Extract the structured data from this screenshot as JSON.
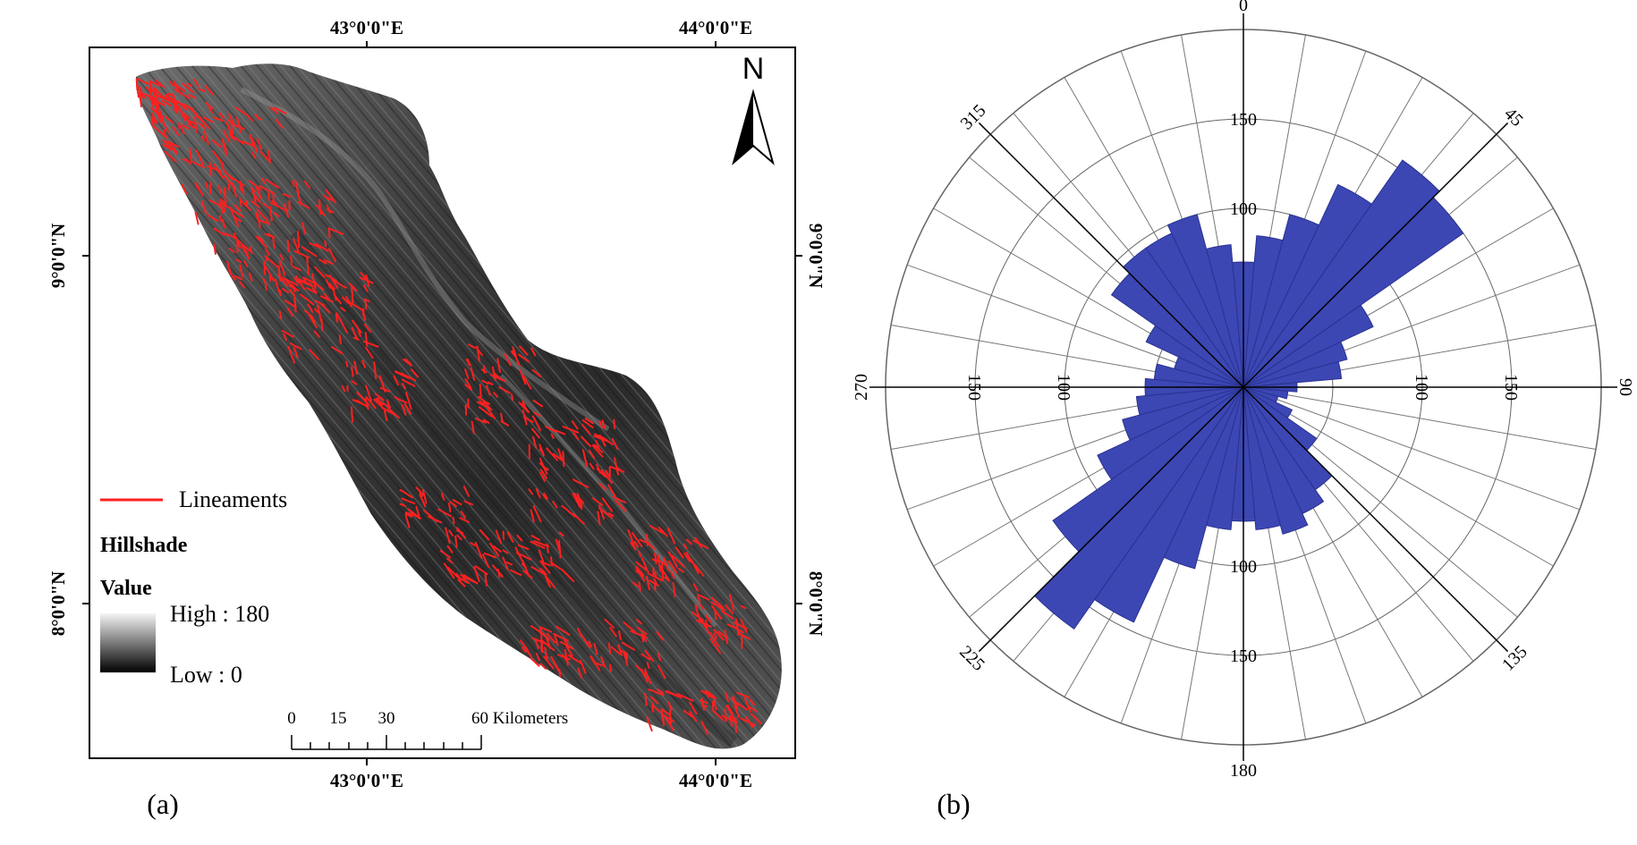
{
  "panel_a": {
    "label": "(a)",
    "top_ticks": [
      "43°0'0\"E",
      "44°0'0\"E"
    ],
    "bottom_ticks": [
      "43°0'0\"E",
      "44°0'0\"E"
    ],
    "left_ticks": [
      "9°0'0\"N",
      "8°0'0\"N"
    ],
    "right_ticks": [
      "9°0'0\"N",
      "8°0'0\"N"
    ],
    "north_label": "N",
    "legend": {
      "lineaments": "Lineaments",
      "hillshade_title": "Hillshade",
      "value_title": "Value",
      "high": "High : 180",
      "low": "Low : 0"
    },
    "scalebar": {
      "labels": [
        "0",
        "15",
        "30",
        "60 Kilometers"
      ]
    },
    "colors": {
      "lineament": "#ff2020",
      "hillshade_dark": "#1a1a1a",
      "hillshade_light": "#9a9a9a"
    }
  },
  "panel_b": {
    "label": "(b)"
  },
  "chart_data": {
    "type": "rose",
    "angles": [
      0,
      10,
      20,
      30,
      40,
      50,
      60,
      70,
      80,
      90,
      100,
      110,
      120,
      130,
      140,
      150,
      160,
      170,
      180,
      190,
      200,
      210,
      220,
      230,
      240,
      250,
      260,
      270,
      280,
      290,
      300,
      310,
      320,
      330,
      340,
      350
    ],
    "values": [
      70,
      85,
      100,
      125,
      155,
      150,
      80,
      60,
      55,
      30,
      25,
      20,
      30,
      50,
      70,
      78,
      85,
      80,
      75,
      80,
      105,
      145,
      165,
      130,
      90,
      70,
      60,
      55,
      50,
      40,
      60,
      90,
      95,
      95,
      100,
      80
    ],
    "rmax": 200,
    "ring_labels": [
      "100",
      "150"
    ],
    "direction_labels": [
      "0",
      "45",
      "90",
      "135",
      "180",
      "225",
      "270",
      "315"
    ],
    "fill_color": "#3c47b4"
  }
}
